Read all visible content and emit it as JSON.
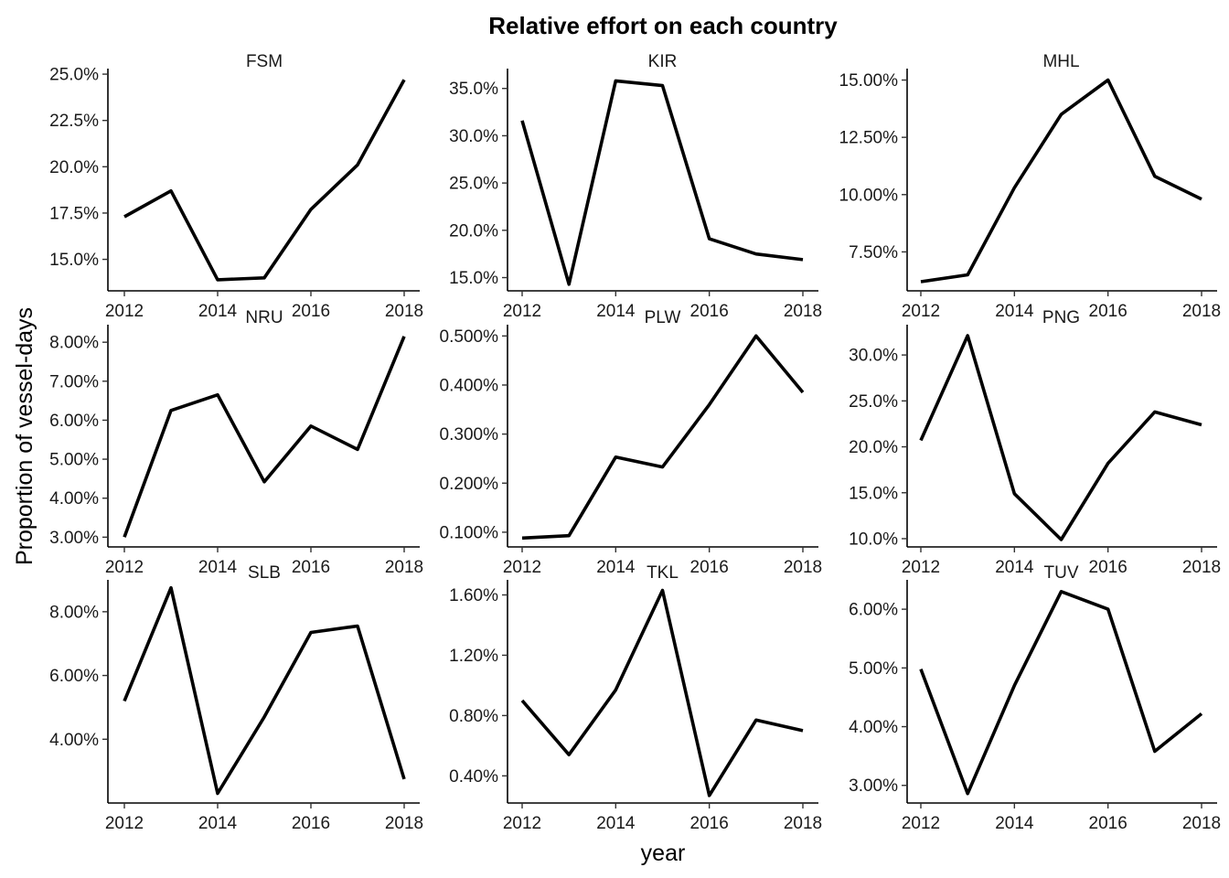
{
  "chart_data": {
    "type": "line",
    "title": "Relative effort on each country",
    "xlabel": "year",
    "ylabel": "Proportion of vessel-days",
    "grid": false,
    "legend": "none",
    "x": [
      2012,
      2013,
      2014,
      2015,
      2016,
      2017,
      2018
    ],
    "x_ticks": [
      2012,
      2014,
      2016,
      2018
    ],
    "x_tick_labels": [
      "2012",
      "2014",
      "2016",
      "2018"
    ],
    "xlim": [
      2011.9,
      2018.05
    ],
    "line_color": "#000000",
    "panels": [
      {
        "name": "FSM",
        "values": [
          17.3,
          18.7,
          13.9,
          14.0,
          17.7,
          20.1,
          24.7
        ],
        "ylim": [
          13.3,
          25.3
        ],
        "ticks": [
          15.0,
          17.5,
          20.0,
          22.5,
          25.0
        ],
        "tick_labels": [
          "15.0%",
          "17.5%",
          "20.0%",
          "22.5%",
          "25.0%"
        ]
      },
      {
        "name": "KIR",
        "values": [
          31.6,
          14.3,
          35.8,
          35.3,
          19.1,
          17.5,
          16.9
        ],
        "ylim": [
          13.6,
          37.1
        ],
        "ticks": [
          15.0,
          20.0,
          25.0,
          30.0,
          35.0
        ],
        "tick_labels": [
          "15.0%",
          "20.0%",
          "25.0%",
          "30.0%",
          "35.0%"
        ]
      },
      {
        "name": "MHL",
        "values": [
          6.2,
          6.5,
          10.3,
          13.5,
          15.0,
          10.8,
          9.8
        ],
        "ylim": [
          5.8,
          15.5
        ],
        "ticks": [
          7.5,
          10.0,
          12.5,
          15.0
        ],
        "tick_labels": [
          "7.50%",
          "10.00%",
          "12.50%",
          "15.00%"
        ]
      },
      {
        "name": "NRU",
        "values": [
          3.0,
          6.25,
          6.65,
          4.42,
          5.85,
          5.25,
          8.15
        ],
        "ylim": [
          2.75,
          8.45
        ],
        "ticks": [
          3.0,
          4.0,
          5.0,
          6.0,
          7.0,
          8.0
        ],
        "tick_labels": [
          "3.00%",
          "4.00%",
          "5.00%",
          "6.00%",
          "7.00%",
          "8.00%"
        ]
      },
      {
        "name": "PLW",
        "values": [
          0.088,
          0.093,
          0.253,
          0.233,
          0.36,
          0.5,
          0.385
        ],
        "ylim": [
          0.07,
          0.523
        ],
        "ticks": [
          0.1,
          0.2,
          0.3,
          0.4,
          0.5
        ],
        "tick_labels": [
          "0.100%",
          "0.200%",
          "0.300%",
          "0.400%",
          "0.500%"
        ]
      },
      {
        "name": "PNG",
        "values": [
          20.7,
          32.1,
          14.9,
          9.9,
          18.2,
          23.8,
          22.4
        ],
        "ylim": [
          9.1,
          33.3
        ],
        "ticks": [
          10.0,
          15.0,
          20.0,
          25.0,
          30.0
        ],
        "tick_labels": [
          "10.0%",
          "15.0%",
          "20.0%",
          "25.0%",
          "30.0%"
        ]
      },
      {
        "name": "SLB",
        "values": [
          5.2,
          8.75,
          2.3,
          4.7,
          7.35,
          7.55,
          2.75
        ],
        "ylim": [
          2.0,
          9.0
        ],
        "ticks": [
          4.0,
          6.0,
          8.0
        ],
        "tick_labels": [
          "4.00%",
          "6.00%",
          "8.00%"
        ]
      },
      {
        "name": "TKL",
        "values": [
          0.9,
          0.54,
          0.97,
          1.63,
          0.27,
          0.77,
          0.7
        ],
        "ylim": [
          0.22,
          1.7
        ],
        "ticks": [
          0.4,
          0.8,
          1.2,
          1.6
        ],
        "tick_labels": [
          "0.40%",
          "0.80%",
          "1.20%",
          "1.60%"
        ]
      },
      {
        "name": "TUV",
        "values": [
          4.98,
          2.86,
          4.7,
          6.3,
          6.0,
          3.58,
          4.22
        ],
        "ylim": [
          2.7,
          6.5
        ],
        "ticks": [
          3.0,
          4.0,
          5.0,
          6.0
        ],
        "tick_labels": [
          "3.00%",
          "4.00%",
          "5.00%",
          "6.00%"
        ]
      }
    ]
  }
}
